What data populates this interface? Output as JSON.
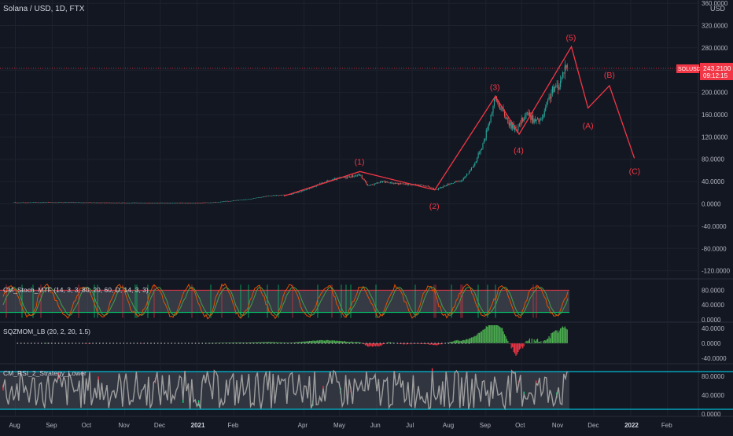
{
  "header": {
    "symbol_title": "Solana / USD, 1D, FTX",
    "currency": "USD"
  },
  "price_badge": {
    "ticker": "SOLUSD",
    "price": "243.2100",
    "countdown": "09:12:15"
  },
  "colors": {
    "background": "#131722",
    "grid": "#1e222d",
    "up": "#26a69a",
    "down": "#ef5350",
    "wave": "#f23645",
    "axis_text": "#b2b5be",
    "stoch_k": "#e65100",
    "stoch_d": "#43a047",
    "mom_pos": "#4caf50",
    "mom_neg": "#f23645",
    "rsi_line": "#9e9e9e",
    "rsi_band": "#00bcd4"
  },
  "chart_data": [
    {
      "type": "candlestick",
      "title": "Solana / USD, 1D, FTX",
      "x_ticks": [
        "Aug",
        "Sep",
        "Oct",
        "Nov",
        "Dec",
        "2021",
        "Feb",
        "Apr",
        "May",
        "Jun",
        "Jul",
        "Aug",
        "Sep",
        "Oct",
        "Nov",
        "Dec",
        "2022",
        "Feb"
      ],
      "y_ticks": [
        "360.0000",
        "320.0000",
        "280.0000",
        "240.0000",
        "200.0000",
        "160.0000",
        "120.0000",
        "80.0000",
        "40.0000",
        "0.0000",
        "-40.0000",
        "-80.0000",
        "-120.0000"
      ],
      "ylim": [
        -120,
        360
      ],
      "last_price": 243.21,
      "price_path": [
        [
          "2020-08-01",
          2.5
        ],
        [
          "2020-09-01",
          3
        ],
        [
          "2020-10-01",
          2.5
        ],
        [
          "2020-11-01",
          2
        ],
        [
          "2020-12-01",
          1.7
        ],
        [
          "2021-01-01",
          1.6
        ],
        [
          "2021-01-20",
          3.5
        ],
        [
          "2021-02-01",
          6
        ],
        [
          "2021-02-15",
          9
        ],
        [
          "2021-03-01",
          14
        ],
        [
          "2021-03-20",
          17
        ],
        [
          "2021-04-01",
          24
        ],
        [
          "2021-04-20",
          40
        ],
        [
          "2021-05-01",
          46
        ],
        [
          "2021-05-18",
          52
        ],
        [
          "2021-05-25",
          32
        ],
        [
          "2021-06-05",
          40
        ],
        [
          "2021-06-20",
          36
        ],
        [
          "2021-07-01",
          35
        ],
        [
          "2021-07-10",
          33
        ],
        [
          "2021-07-22",
          26
        ],
        [
          "2021-08-01",
          36
        ],
        [
          "2021-08-12",
          42
        ],
        [
          "2021-08-22",
          70
        ],
        [
          "2021-08-30",
          110
        ],
        [
          "2021-09-09",
          190
        ],
        [
          "2021-09-14",
          170
        ],
        [
          "2021-09-22",
          140
        ],
        [
          "2021-09-28",
          136
        ],
        [
          "2021-10-05",
          165
        ],
        [
          "2021-10-12",
          148
        ],
        [
          "2021-10-18",
          150
        ],
        [
          "2021-10-26",
          200
        ],
        [
          "2021-11-02",
          215
        ],
        [
          "2021-11-07",
          250
        ],
        [
          "2021-11-09",
          243
        ]
      ],
      "elliott_waves": {
        "labels": [
          "(1)",
          "(2)",
          "(3)",
          "(4)",
          "(5)",
          "(A)",
          "(B)",
          "(C)"
        ],
        "points": [
          [
            "2021-03-15",
            14
          ],
          [
            "2021-05-18",
            58
          ],
          [
            "2021-07-20",
            25
          ],
          [
            "2021-09-09",
            193
          ],
          [
            "2021-09-29",
            125
          ],
          [
            "2021-11-12",
            282
          ],
          [
            "2021-11-26",
            172
          ],
          [
            "2021-12-14",
            212
          ],
          [
            "2022-01-04",
            82
          ]
        ]
      }
    },
    {
      "type": "line",
      "title": "CM_Stoch_MTF (14, 3, 3, 80, 20, 60, D, 14, 3, 3)",
      "y_ticks": [
        "80.0000",
        "40.0000",
        "0.0000"
      ],
      "ylim": [
        0,
        100
      ],
      "levels": [
        80,
        20
      ]
    },
    {
      "type": "bar",
      "title": "SQZMOM_LB (20, 2, 20, 1.5)",
      "y_ticks": [
        "40.0000",
        "0.0000",
        "-40.0000"
      ],
      "ylim": [
        -50,
        50
      ]
    },
    {
      "type": "line",
      "title": "CM_RSI_2_Strategy_Lower",
      "y_ticks": [
        "80.0000",
        "40.0000",
        "0.0000"
      ],
      "ylim": [
        0,
        100
      ],
      "levels": [
        90,
        10
      ]
    }
  ]
}
